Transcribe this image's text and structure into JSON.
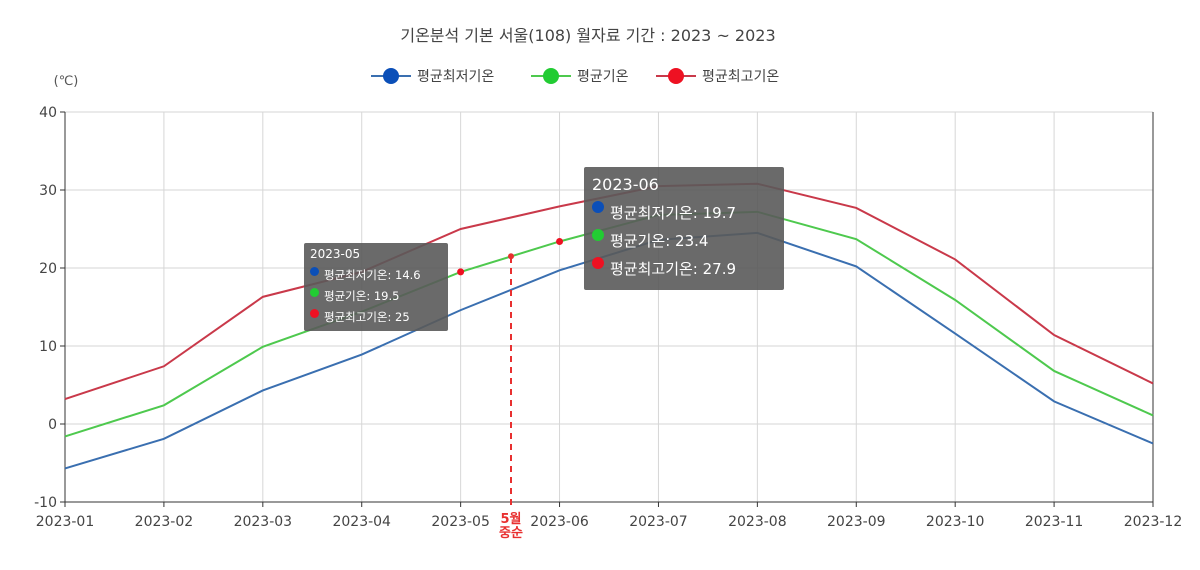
{
  "chart_data": {
    "type": "line",
    "title": "기온분석 기본 서울(108) 월자료 기간 : 2023 ~ 2023",
    "ylabel": "(℃)",
    "xlabel": "",
    "ylim": [
      -10,
      40
    ],
    "yticks": [
      -10,
      0,
      10,
      20,
      30,
      40
    ],
    "categories": [
      "2023-01",
      "2023-02",
      "2023-03",
      "2023-04",
      "2023-05",
      "2023-06",
      "2023-07",
      "2023-08",
      "2023-09",
      "2023-10",
      "2023-11",
      "2023-12"
    ],
    "legend_position": "top-center",
    "grid": true,
    "series": [
      {
        "name": "평균최저기온",
        "color": "#3a6fb0",
        "marker": "#0b4fb8",
        "values": [
          -5.7,
          -1.9,
          4.3,
          8.9,
          14.6,
          19.7,
          23.6,
          24.5,
          20.2,
          11.6,
          2.9,
          -2.5
        ]
      },
      {
        "name": "평균기온",
        "color": "#4ec94e",
        "marker": "#22cc33",
        "values": [
          -1.6,
          2.4,
          9.9,
          14.4,
          19.5,
          23.4,
          26.8,
          27.2,
          23.7,
          15.9,
          6.8,
          1.1
        ]
      },
      {
        "name": "평균최고기온",
        "color": "#c9394a",
        "marker": "#ee1122",
        "values": [
          3.2,
          7.4,
          16.3,
          19.5,
          25,
          27.9,
          30.5,
          30.8,
          27.7,
          21.1,
          11.4,
          5.2
        ]
      }
    ]
  },
  "tooltips": {
    "small": {
      "title": "2023-05",
      "rows": [
        "평균최저기온: 14.6",
        "평균기온: 19.5",
        "평균최고기온: 25"
      ]
    },
    "large": {
      "title": "2023-06",
      "rows": [
        "평균최저기온: 19.7",
        "평균기온: 23.4",
        "평균최고기온: 27.9"
      ]
    }
  },
  "annotation": {
    "line1": "5월",
    "line2": "중순",
    "color": "#e83030"
  }
}
